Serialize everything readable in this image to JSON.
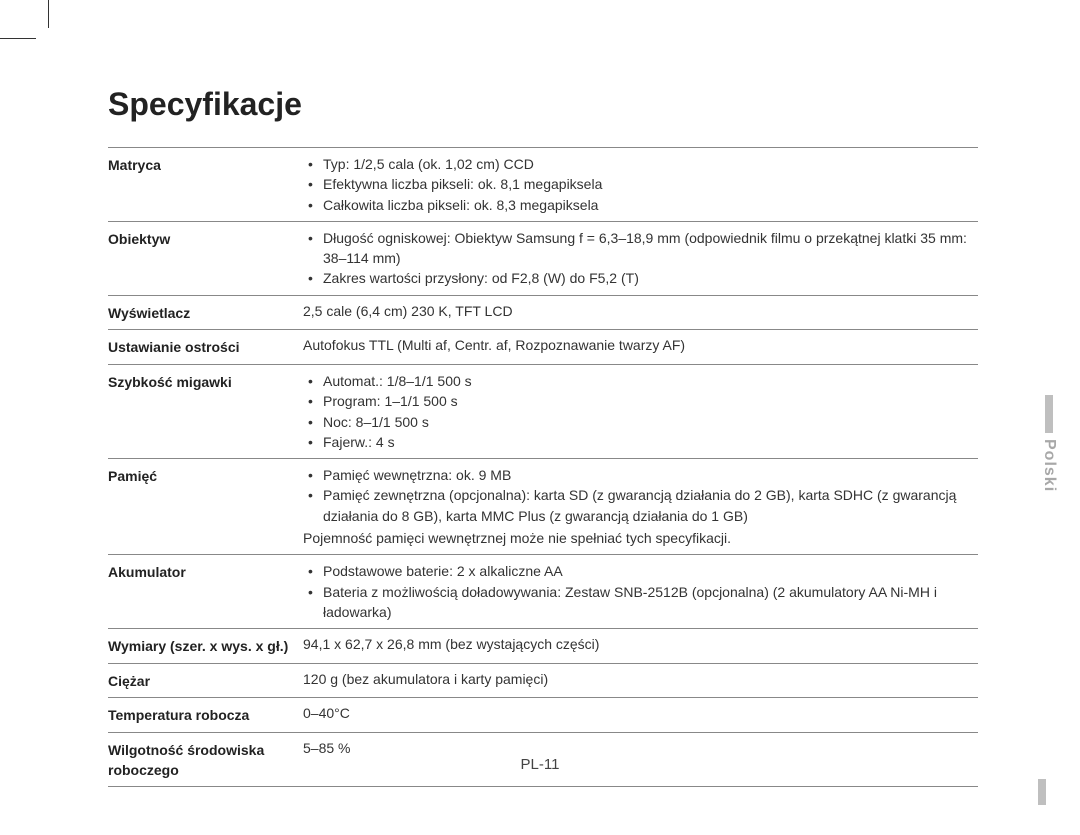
{
  "title": "Specyfikacje",
  "language_tab": "Polski",
  "page_number": "PL-11",
  "rows": [
    {
      "label": "Matryca",
      "bullets": [
        "Typ: 1/2,5 cala (ok. 1,02 cm) CCD",
        "Efektywna liczba pikseli: ok. 8,1 megapiksela",
        "Całkowita liczba pikseli: ok. 8,3 megapiksela"
      ]
    },
    {
      "label": "Obiektyw",
      "bullets": [
        "Długość ogniskowej: Obiektyw Samsung f = 6,3–18,9 mm (odpowiednik filmu o przekątnej klatki 35 mm: 38–114 mm)",
        "Zakres wartości przysłony: od F2,8 (W) do F5,2 (T)"
      ]
    },
    {
      "label": "Wyświetlacz",
      "text": "2,5 cale (6,4 cm) 230 K, TFT LCD"
    },
    {
      "label": "Ustawianie ostrości",
      "text": "Autofokus TTL (Multi af, Centr. af, Rozpoznawanie twarzy AF)"
    },
    {
      "label": "Szybkość migawki",
      "bullets": [
        "Automat.: 1/8–1/1 500 s",
        "Program: 1–1/1 500 s",
        "Noc: 8–1/1 500 s",
        "Fajerw.: 4 s"
      ]
    },
    {
      "label": "Pamięć",
      "bullets": [
        "Pamięć wewnętrzna: ok. 9 MB",
        "Pamięć zewnętrzna (opcjonalna): karta SD (z gwarancją działania do 2 GB), karta SDHC (z gwarancją działania do 8 GB), karta MMC Plus (z gwarancją działania do 1 GB)"
      ],
      "note": "Pojemność pamięci wewnętrznej może nie spełniać tych specyfikacji."
    },
    {
      "label": "Akumulator",
      "bullets": [
        "Podstawowe baterie: 2 x alkaliczne AA",
        "Bateria z możliwością doładowywania: Zestaw SNB-2512B (opcjonalna) (2 akumulatory AA Ni-MH i ładowarka)"
      ]
    },
    {
      "label": "Wymiary (szer. x wys. x gł.)",
      "text": "94,1 x 62,7 x 26,8 mm (bez wystających części)"
    },
    {
      "label": "Ciężar",
      "text": "120 g (bez akumulatora i karty pamięci)"
    },
    {
      "label": "Temperatura robocza",
      "text": "0–40°C"
    },
    {
      "label": "Wilgotność środowiska roboczego",
      "text": "5–85 %"
    }
  ]
}
